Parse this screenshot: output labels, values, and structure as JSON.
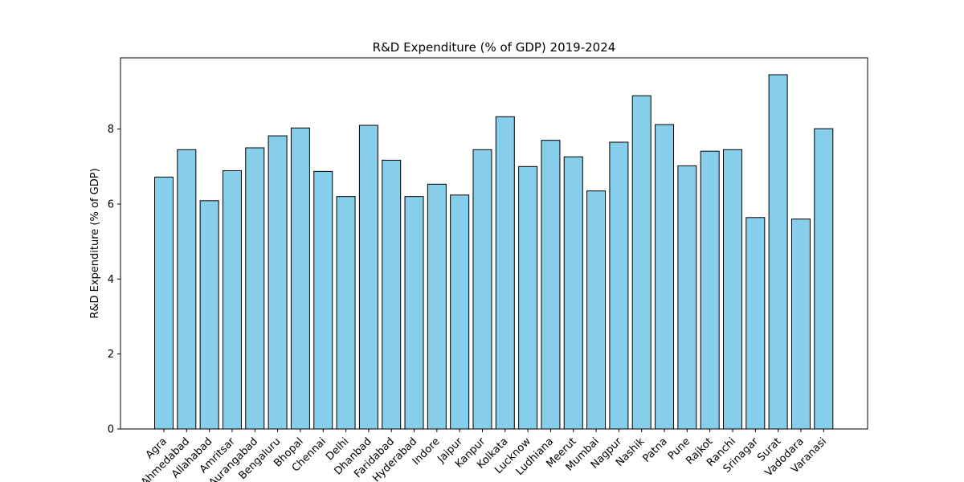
{
  "chart_data": {
    "type": "bar",
    "title": "R&D Expenditure (% of GDP) 2019-2024",
    "xlabel": "",
    "ylabel": "R&D Expenditure (% of GDP)",
    "categories": [
      "Agra",
      "Ahmedabad",
      "Allahabad",
      "Amritsar",
      "Aurangabad",
      "Bengaluru",
      "Bhopal",
      "Chennai",
      "Delhi",
      "Dhanbad",
      "Faridabad",
      "Hyderabad",
      "Indore",
      "Jaipur",
      "Kanpur",
      "Kolkata",
      "Lucknow",
      "Ludhiana",
      "Meerut",
      "Mumbai",
      "Nagpur",
      "Nashik",
      "Patna",
      "Pune",
      "Rajkot",
      "Ranchi",
      "Srinagar",
      "Surat",
      "Vadodara",
      "Varanasi"
    ],
    "values": [
      6.72,
      7.45,
      6.09,
      6.89,
      7.5,
      7.82,
      8.03,
      6.87,
      6.2,
      8.1,
      7.17,
      6.2,
      6.53,
      6.24,
      7.45,
      8.33,
      7.0,
      7.7,
      7.26,
      6.35,
      7.65,
      8.89,
      8.12,
      7.02,
      7.41,
      7.45,
      5.64,
      9.45,
      5.6,
      8.01
    ],
    "ylim": [
      0,
      9.9
    ],
    "yticks": [
      0,
      2,
      4,
      6,
      8
    ],
    "grid": false,
    "bar_color": "#87ceeb",
    "edge_color": "#000000"
  }
}
